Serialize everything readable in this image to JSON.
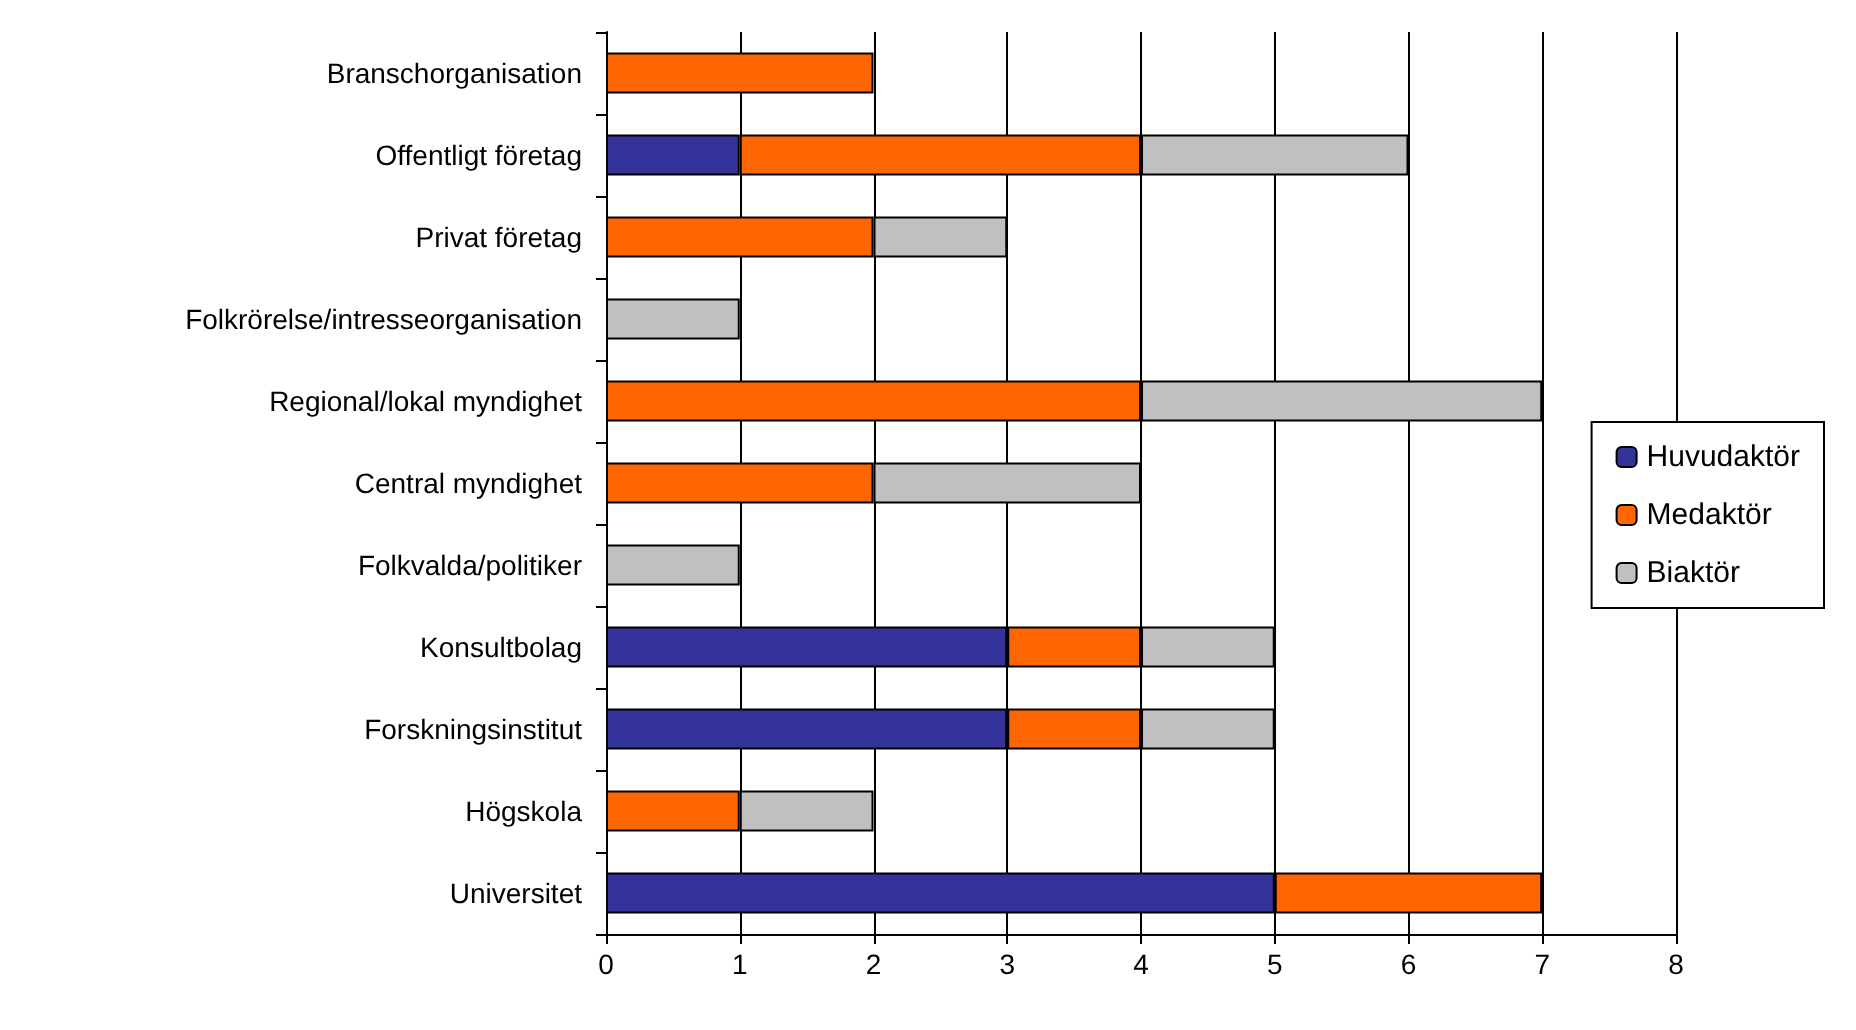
{
  "chart_data": {
    "type": "bar",
    "orientation": "horizontal",
    "stacked": true,
    "categories": [
      "Branschorganisation",
      "Offentligt företag",
      "Privat företag",
      "Folkrörelse/intresseorganisation",
      "Regional/lokal myndighet",
      "Central myndighet",
      "Folkvalda/politiker",
      "Konsultbolag",
      "Forskningsinstitut",
      "Högskola",
      "Universitet"
    ],
    "series": [
      {
        "name": "Huvudaktör",
        "color": "#333399",
        "values": [
          0,
          1,
          0,
          0,
          0,
          0,
          0,
          3,
          3,
          0,
          5
        ]
      },
      {
        "name": "Medaktör",
        "color": "#ff6600",
        "values": [
          2,
          3,
          2,
          0,
          4,
          2,
          0,
          1,
          1,
          1,
          2
        ]
      },
      {
        "name": "Biaktör",
        "color": "#c0c0c0",
        "values": [
          0,
          2,
          1,
          1,
          3,
          2,
          1,
          1,
          1,
          1,
          0
        ]
      }
    ],
    "xlim": [
      0,
      8
    ],
    "xticks": [
      0,
      1,
      2,
      3,
      4,
      5,
      6,
      7,
      8
    ],
    "grid": "x",
    "legend": "right"
  }
}
